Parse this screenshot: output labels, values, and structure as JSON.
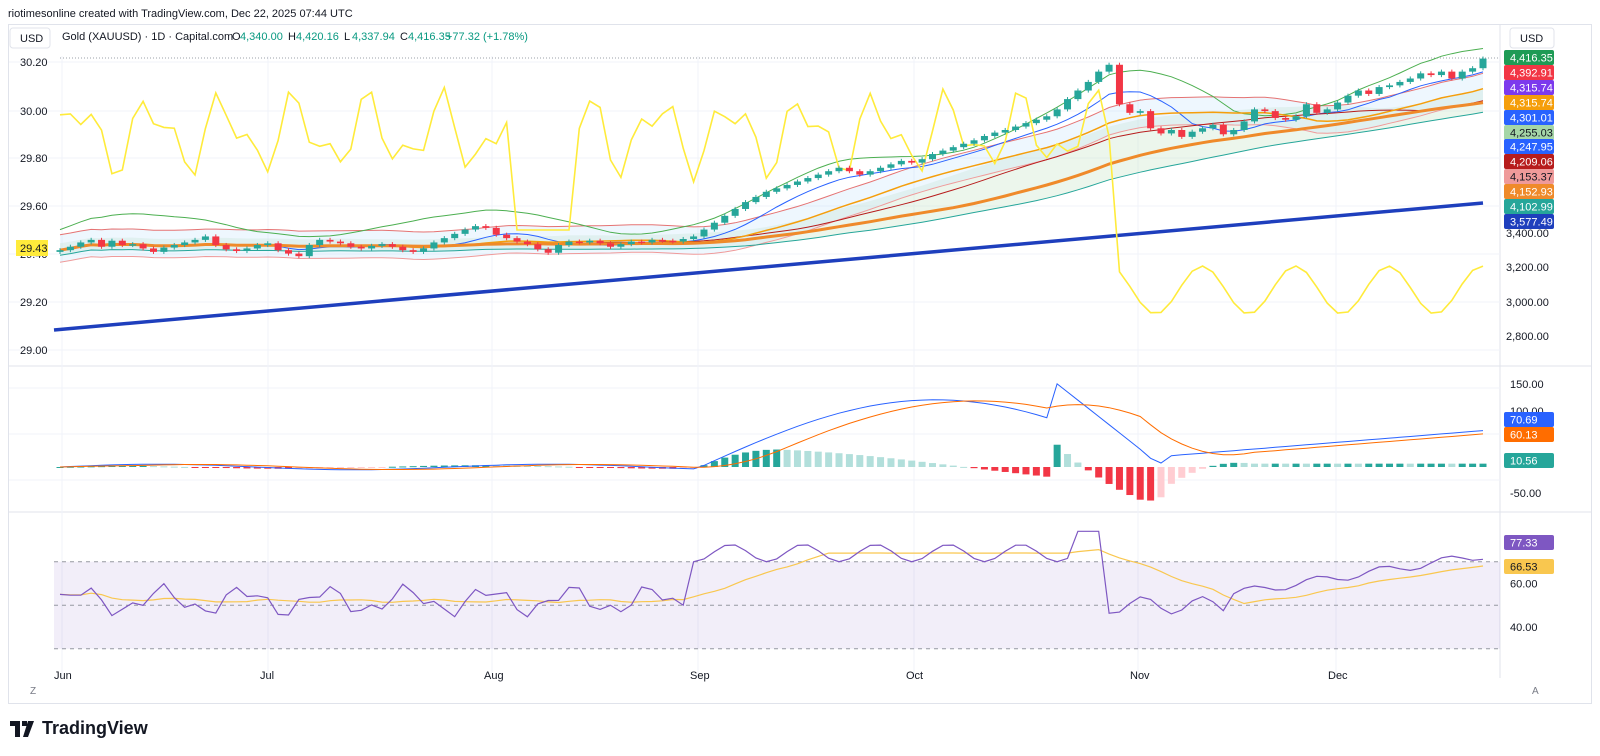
{
  "caption": "riotimesonline created with TradingView.com, Dec 22, 2025 07:44 UTC",
  "header": {
    "currency_left": "USD",
    "currency_right": "USD",
    "symbol": "Gold (XAUUSD) · 1D · Capital.com",
    "ohlc": [
      {
        "k": "O",
        "v": "4,340.00"
      },
      {
        "k": "H",
        "v": "4,420.16"
      },
      {
        "k": "L",
        "v": "4,337.94"
      },
      {
        "k": "C",
        "v": "4,416.35"
      }
    ],
    "change": "+77.32 (+1.78%)"
  },
  "brand": "TradingView",
  "corner_left": "Z",
  "corner_right": "A",
  "colors": {
    "up": "#26a69a",
    "down": "#f23645",
    "yellow": "#ffeb3b",
    "blue_trend": "#1e3fbd",
    "orange_ma": "#ef8a2a",
    "macd": "#2962ff",
    "signal": "#ff6d00",
    "rsi": "#7e57c2"
  },
  "chart_data": [
    {
      "type": "line",
      "title": "Gold (XAUUSD) · 1D · Capital.com — price with overlays",
      "x": [
        "Jun",
        "Jul",
        "Aug",
        "Sep",
        "Oct",
        "Nov",
        "Dec"
      ],
      "right_axis_ticks": [
        "3,400.00",
        "3,200.00",
        "3,000.00",
        "2,800.00"
      ],
      "left_axis_ticks": [
        "30.20",
        "30.00",
        "29.80",
        "29.60",
        "29.40",
        "29.20",
        "29.00"
      ],
      "left_axis_label": "29.43",
      "price_series": [
        3300,
        3320,
        3345,
        3360,
        3320,
        3355,
        3330,
        3335,
        3310,
        3290,
        3315,
        3330,
        3345,
        3360,
        3380,
        3330,
        3305,
        3295,
        3310,
        3330,
        3340,
        3300,
        3280,
        3265,
        3330,
        3360,
        3350,
        3340,
        3320,
        3310,
        3325,
        3335,
        3320,
        3300,
        3290,
        3310,
        3345,
        3370,
        3395,
        3420,
        3440,
        3430,
        3390,
        3370,
        3350,
        3335,
        3305,
        3285,
        3330,
        3350,
        3345,
        3355,
        3340,
        3320,
        3335,
        3350,
        3345,
        3360,
        3355,
        3350,
        3365,
        3380,
        3420,
        3460,
        3500,
        3540,
        3580,
        3610,
        3640,
        3660,
        3680,
        3700,
        3720,
        3740,
        3760,
        3780,
        3760,
        3740,
        3760,
        3780,
        3800,
        3820,
        3810,
        3830,
        3860,
        3880,
        3900,
        3920,
        3940,
        3965,
        3985,
        4000,
        4020,
        4040,
        4060,
        4080,
        4120,
        4180,
        4230,
        4280,
        4340,
        4380,
        4150,
        4100,
        4110,
        4010,
        3980,
        4000,
        3960,
        3990,
        4010,
        4030,
        3975,
        4000,
        4050,
        4120,
        4110,
        4070,
        4060,
        4080,
        4150,
        4100,
        4120,
        4160,
        4200,
        4230,
        4210,
        4250,
        4260,
        4280,
        4300,
        4330,
        4320,
        4340,
        4300,
        4340,
        4360,
        4416
      ],
      "series": [
        {
          "name": "4,416.35",
          "color": "#1e9b55"
        },
        {
          "name": "4,392.91",
          "color": "#f23645"
        },
        {
          "name": "4,315.74",
          "color": "#7c3aed"
        },
        {
          "name": "4,315.74",
          "color": "#f59e0b"
        },
        {
          "name": "4,301.01",
          "color": "#2962ff"
        },
        {
          "name": "4,255.03",
          "color": "#a5d6a7"
        },
        {
          "name": "4,247.95",
          "color": "#2962ff"
        },
        {
          "name": "4,209.06",
          "color": "#b71c1c"
        },
        {
          "name": "4,153.37",
          "color": "#ef9a9a"
        },
        {
          "name": "4,152.93",
          "color": "#ef8a2a"
        },
        {
          "name": "4,102.99",
          "color": "#26a69a"
        },
        {
          "name": "3,577.49",
          "color": "#1e3fbd"
        }
      ]
    },
    {
      "type": "line",
      "title": "MACD",
      "y_ticks": [
        "150.00",
        "100.00",
        "-50.00"
      ],
      "series": [
        {
          "name": "70.69",
          "color": "#2962ff"
        },
        {
          "name": "60.13",
          "color": "#ff6d00"
        },
        {
          "name": "10.56",
          "color": "#26a69a"
        }
      ]
    },
    {
      "type": "line",
      "title": "RSI",
      "y_ticks": [
        "80.00",
        "60.00",
        "40.00"
      ],
      "series": [
        {
          "name": "77.33",
          "color": "#7e57c2"
        },
        {
          "name": "66.53",
          "color": "#f9c74f"
        }
      ]
    }
  ]
}
